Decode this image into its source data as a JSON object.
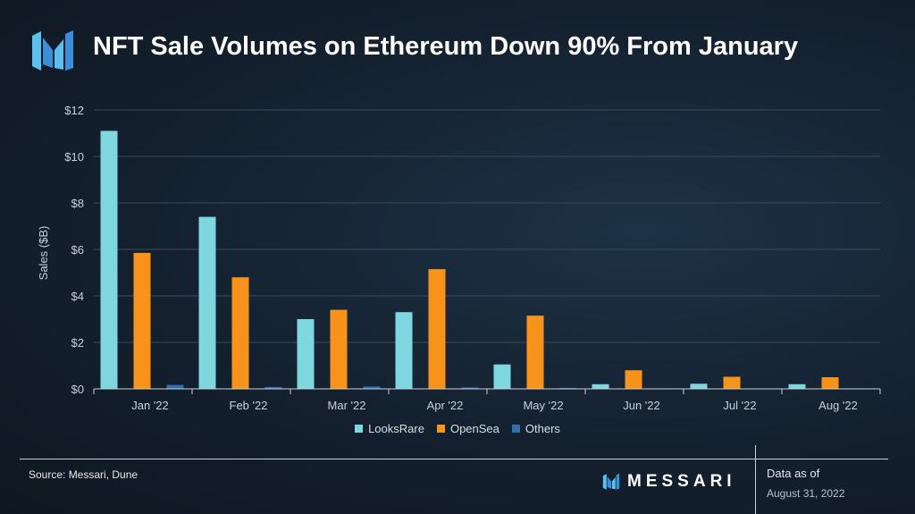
{
  "header": {
    "title": "NFT Sale Volumes on Ethereum Down 90% From January",
    "logo_icon": "messari-logo-icon"
  },
  "chart_data": {
    "type": "bar",
    "title": "NFT Sale Volumes on Ethereum Down 90% From January",
    "xlabel": "",
    "ylabel": "Sales ($B)",
    "ylim": [
      0,
      12
    ],
    "yticks": [
      0,
      2,
      4,
      6,
      8,
      10,
      12
    ],
    "ytick_labels": [
      "$0",
      "$2",
      "$4",
      "$6",
      "$8",
      "$10",
      "$12"
    ],
    "grid": true,
    "legend_position": "bottom-center",
    "categories": [
      "Jan '22",
      "Feb '22",
      "Mar '22",
      "Apr '22",
      "May '22",
      "Jun '22",
      "Jul '22",
      "Aug '22"
    ],
    "series": [
      {
        "name": "LooksRare",
        "color": "#7ed6df",
        "values": [
          11.1,
          7.4,
          3.0,
          3.3,
          1.05,
          0.2,
          0.22,
          0.2
        ]
      },
      {
        "name": "OpenSea",
        "color": "#f7931a",
        "values": [
          5.85,
          4.8,
          3.4,
          5.15,
          3.15,
          0.8,
          0.52,
          0.5
        ]
      },
      {
        "name": "Others",
        "color": "#2f6eb0",
        "values": [
          0.17,
          0.08,
          0.1,
          0.06,
          0.04,
          0.02,
          0.02,
          0.02
        ]
      }
    ]
  },
  "footer": {
    "source": "Source: Messari, Dune",
    "brand": "MESSARI",
    "asof_label": "Data as of",
    "asof_date": "August 31, 2022"
  }
}
